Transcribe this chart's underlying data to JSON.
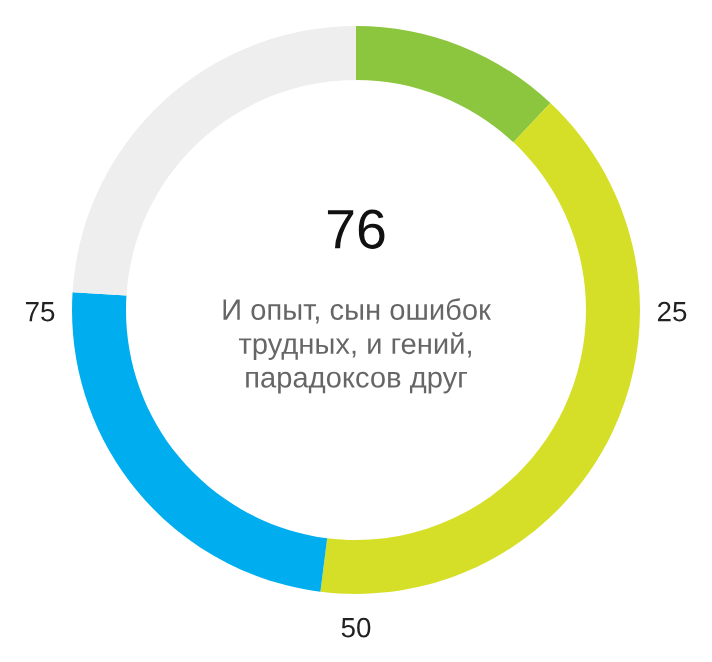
{
  "chart_data": {
    "type": "donut",
    "title": "76",
    "subtitle": "И опыт, сын ошибок\nтрудных, и гений,\nпарадоксов друг",
    "categories": [
      null,
      null,
      null,
      null
    ],
    "values": [
      12,
      40,
      24,
      24
    ],
    "colors": [
      "#8cc63f",
      "#d5df27",
      "#00aeef",
      "#eeeeee"
    ],
    "annotations": [
      "25",
      "50",
      "75"
    ]
  }
}
